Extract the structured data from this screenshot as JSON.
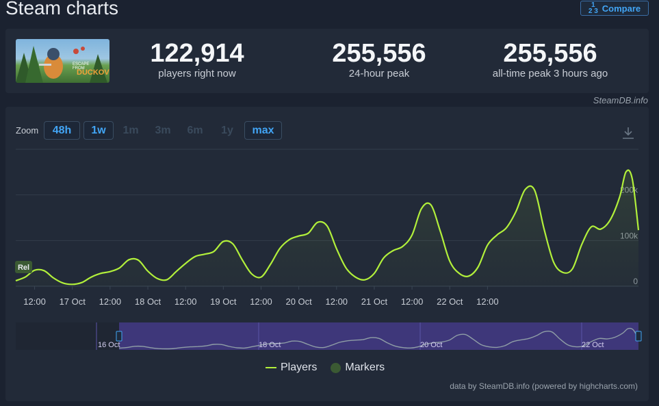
{
  "header": {
    "title": "Steam charts",
    "compare_label": "Compare",
    "compare_icon": "1/2/3-icon"
  },
  "game": {
    "thumbnail_text": "DUCKOV",
    "thumbnail_subtext": "ESCAPE FROM"
  },
  "stats": [
    {
      "value": "122,914",
      "label": "players right now"
    },
    {
      "value": "255,556",
      "label": "24-hour peak"
    },
    {
      "value": "255,556",
      "label": "all-time peak 3 hours ago"
    }
  ],
  "credit_top": "SteamDB.info",
  "zoom": {
    "label": "Zoom",
    "options": [
      {
        "label": "48h",
        "active": true
      },
      {
        "label": "1w",
        "active": true
      },
      {
        "label": "1m",
        "active": false
      },
      {
        "label": "3m",
        "active": false
      },
      {
        "label": "6m",
        "active": false
      },
      {
        "label": "1y",
        "active": false
      },
      {
        "label": "max",
        "active": true
      }
    ]
  },
  "chart_data": {
    "type": "area",
    "series": [
      {
        "name": "Players",
        "color": "#b2f03b",
        "x_hours": [
          0,
          3,
          6,
          9,
          12,
          15,
          18,
          21,
          24,
          27,
          30,
          33,
          36,
          39,
          42,
          45,
          48,
          51,
          54,
          57,
          60,
          63,
          66,
          69,
          72,
          75,
          78,
          81,
          84,
          87,
          90,
          93,
          96,
          99,
          102,
          105,
          108,
          111,
          114,
          117,
          120,
          123,
          126,
          129,
          132,
          135,
          138,
          141,
          144,
          147,
          150,
          153,
          156,
          159,
          162,
          165,
          168,
          171,
          174,
          177,
          180,
          183,
          186,
          189,
          192,
          194,
          196,
          198
        ],
        "values": [
          12000,
          20000,
          35000,
          34000,
          18000,
          7000,
          4000,
          8000,
          20000,
          28000,
          32000,
          40000,
          58000,
          57000,
          33000,
          17000,
          14000,
          32000,
          50000,
          65000,
          70000,
          76000,
          98000,
          93000,
          58000,
          27000,
          20000,
          48000,
          83000,
          102000,
          110000,
          116000,
          140000,
          132000,
          82000,
          40000,
          20000,
          14000,
          28000,
          62000,
          78000,
          87000,
          112000,
          170000,
          178000,
          120000,
          55000,
          28000,
          22000,
          42000,
          90000,
          112000,
          128000,
          163000,
          212000,
          210000,
          125000,
          53000,
          30000,
          38000,
          92000,
          130000,
          125000,
          145000,
          195000,
          250000,
          236000,
          122914
        ]
      }
    ],
    "x_ticks": [
      "12:00",
      "17 Oct",
      "12:00",
      "18 Oct",
      "12:00",
      "19 Oct",
      "12:00",
      "20 Oct",
      "12:00",
      "21 Oct",
      "12:00",
      "22 Oct",
      "12:00"
    ],
    "y_ticks": [
      "0",
      "100k",
      "200k"
    ],
    "ylim": [
      0,
      300000
    ],
    "marker_label": "Rel",
    "navigator_labels": [
      "16 Oct",
      "18 Oct",
      "20 Oct",
      "22 Oct"
    ],
    "legend": [
      "Players",
      "Markers"
    ],
    "legend_colors": {
      "players": "#b2f03b",
      "markers": "#3b5a33"
    },
    "legend_placement": "bottom",
    "grid": true
  },
  "credit_bottom": "data by SteamDB.info (powered by highcharts.com)"
}
